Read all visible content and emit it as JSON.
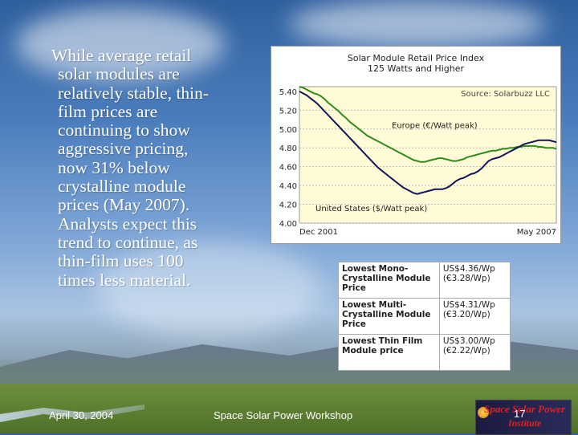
{
  "slide": {
    "body_lines": [
      "While average retail",
      "solar modules are",
      "relatively stable, thin-",
      "film prices are",
      "continuing to show",
      "aggressive pricing,",
      "now 31% below",
      "crystalline module",
      "prices (May 2007).",
      "Analysts expect this",
      "trend to continue, as",
      "thin-film uses 100",
      "times less material."
    ],
    "footer_date": "April 30, 2004",
    "footer_title": "Space Solar Power Workshop",
    "page_number": "17",
    "logo_text_1": "Space Solar Power",
    "logo_text_2": "Institute"
  },
  "chart_data": {
    "type": "line",
    "title": "Solar Module Retail Price Index",
    "subtitle": "125 Watts and Higher",
    "source": "Source: Solarbuzz LLC",
    "x_start_label": "Dec 2001",
    "x_end_label": "May 2007",
    "y_ticks": [
      "5.40",
      "5.20",
      "5.00",
      "4.80",
      "4.60",
      "4.40",
      "4.20",
      "4.00"
    ],
    "ylim": [
      4.0,
      5.45
    ],
    "grid": true,
    "series": [
      {
        "name": "Europe (€/Watt peak)",
        "color": "#2e8b1a",
        "values": [
          5.45,
          5.44,
          5.42,
          5.4,
          5.38,
          5.37,
          5.35,
          5.32,
          5.28,
          5.25,
          5.22,
          5.19,
          5.15,
          5.12,
          5.08,
          5.05,
          5.02,
          4.99,
          4.96,
          4.93,
          4.91,
          4.89,
          4.87,
          4.85,
          4.83,
          4.81,
          4.79,
          4.77,
          4.75,
          4.73,
          4.71,
          4.69,
          4.67,
          4.66,
          4.65,
          4.65,
          4.66,
          4.67,
          4.68,
          4.69,
          4.69,
          4.68,
          4.67,
          4.66,
          4.66,
          4.67,
          4.68,
          4.7,
          4.71,
          4.72,
          4.73,
          4.74,
          4.75,
          4.76,
          4.77,
          4.77,
          4.78,
          4.79,
          4.79,
          4.8,
          4.8,
          4.81,
          4.81,
          4.82,
          4.82,
          4.82,
          4.82,
          4.81,
          4.81,
          4.8,
          4.8,
          4.8,
          4.79
        ]
      },
      {
        "name": "United States ($/Watt peak)",
        "color": "#14145a",
        "values": [
          5.4,
          5.38,
          5.36,
          5.33,
          5.3,
          5.27,
          5.23,
          5.19,
          5.15,
          5.11,
          5.07,
          5.03,
          4.99,
          4.95,
          4.91,
          4.87,
          4.83,
          4.79,
          4.75,
          4.71,
          4.67,
          4.63,
          4.59,
          4.56,
          4.53,
          4.5,
          4.47,
          4.44,
          4.41,
          4.38,
          4.36,
          4.34,
          4.32,
          4.31,
          4.32,
          4.33,
          4.34,
          4.35,
          4.36,
          4.36,
          4.36,
          4.37,
          4.39,
          4.42,
          4.45,
          4.47,
          4.48,
          4.5,
          4.52,
          4.53,
          4.55,
          4.58,
          4.62,
          4.66,
          4.68,
          4.69,
          4.7,
          4.72,
          4.74,
          4.76,
          4.78,
          4.8,
          4.82,
          4.84,
          4.85,
          4.86,
          4.87,
          4.88,
          4.88,
          4.88,
          4.88,
          4.87,
          4.86
        ]
      }
    ]
  },
  "price_table": [
    {
      "label": "Lowest Mono-Crystalline Module Price",
      "value_usd": "US$4.36/Wp",
      "value_eur": "(€3.28/Wp)"
    },
    {
      "label": "Lowest Multi-Crystalline Module Price",
      "value_usd": "US$4.31/Wp",
      "value_eur": "(€3.20/Wp)"
    },
    {
      "label": "Lowest Thin Film Module price",
      "value_usd": "US$3.00/Wp",
      "value_eur": "(€2.22/Wp)"
    }
  ]
}
